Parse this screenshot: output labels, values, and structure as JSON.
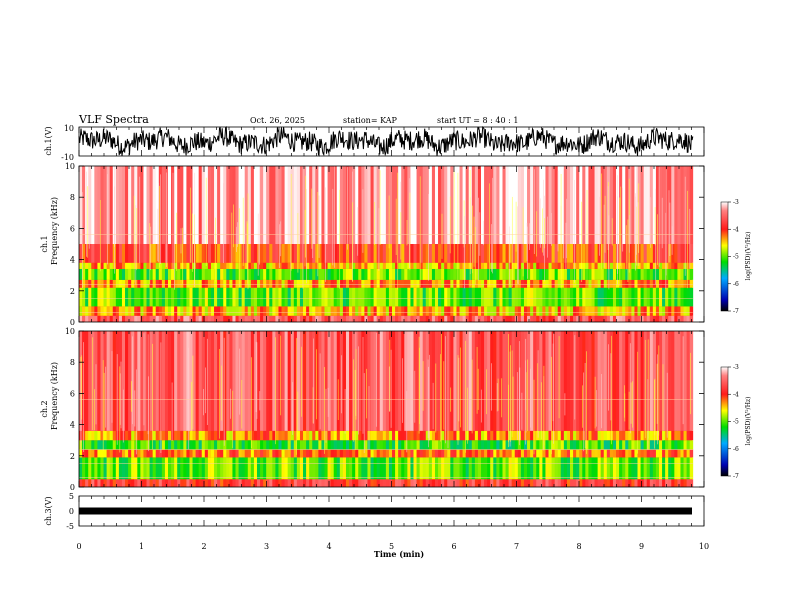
{
  "header": {
    "title": "VLF Spectra",
    "date": "Oct. 26, 2025",
    "station": "station= KAP",
    "start_ut": "start  UT  =   8  : 40 : 1"
  },
  "chart_data": {
    "type": "heatmap",
    "x_axis": {
      "label": "Time  (min)",
      "range": [
        0,
        10
      ],
      "ticks": [
        "0",
        "1",
        "2",
        "3",
        "4",
        "5",
        "6",
        "7",
        "8",
        "9",
        "10"
      ],
      "data_end": 9.82
    },
    "panels": [
      {
        "id": "ch1-waveform",
        "type": "line",
        "ylabel": "ch.1(V)",
        "ylim": [
          -10,
          10
        ],
        "yticks": [
          "10",
          "-10"
        ]
      },
      {
        "id": "ch1-spectrogram",
        "type": "heatmap",
        "ylabel_line1": "ch.1",
        "ylabel_line2": "Frequency  (kHz)",
        "ylim": [
          0,
          10
        ],
        "yticks": [
          "0",
          "2",
          "4",
          "6",
          "8",
          "10"
        ],
        "bands_khz": [
          {
            "from": 0.0,
            "to": 0.4,
            "level": -3.6
          },
          {
            "from": 0.4,
            "to": 1.0,
            "level": -4.4
          },
          {
            "from": 1.0,
            "to": 2.2,
            "level": -5.0
          },
          {
            "from": 2.2,
            "to": 2.7,
            "level": -4.3
          },
          {
            "from": 2.7,
            "to": 3.4,
            "level": -5.0
          },
          {
            "from": 3.4,
            "to": 3.8,
            "level": -4.4
          },
          {
            "from": 3.8,
            "to": 5.0,
            "level": -4.0
          },
          {
            "from": 5.0,
            "to": 10.0,
            "level": -3.3
          }
        ]
      },
      {
        "id": "ch2-spectrogram",
        "type": "heatmap",
        "ylabel_line1": "ch.2",
        "ylabel_line2": "Frequency  (kHz)",
        "ylim": [
          0,
          10
        ],
        "yticks": [
          "0",
          "2",
          "4",
          "6",
          "8",
          "10"
        ],
        "bands_khz": [
          {
            "from": 0.0,
            "to": 0.5,
            "level": -3.8
          },
          {
            "from": 0.5,
            "to": 1.9,
            "level": -5.0
          },
          {
            "from": 1.9,
            "to": 2.4,
            "level": -4.2
          },
          {
            "from": 2.4,
            "to": 3.0,
            "level": -5.1
          },
          {
            "from": 3.0,
            "to": 3.6,
            "level": -4.3
          },
          {
            "from": 3.6,
            "to": 10.0,
            "level": -3.6
          }
        ]
      },
      {
        "id": "ch3-waveform",
        "type": "line",
        "ylabel": "ch.3(V)",
        "ylim": [
          -5,
          5
        ],
        "yticks": [
          "5",
          "0",
          "-5"
        ],
        "level": 0
      }
    ],
    "colorbar": {
      "label": "log(PSD)(V²/Hz)",
      "range": [
        -7,
        -3
      ],
      "ticks": [
        "-3",
        "-4",
        "-5",
        "-6",
        "-7"
      ]
    }
  },
  "colors": {
    "high": "#ff1a1a",
    "mid": "#ffff00",
    "low": "#00dd00",
    "base": "#0000cc",
    "floor": "#000000",
    "saturation": "#ffffff"
  }
}
